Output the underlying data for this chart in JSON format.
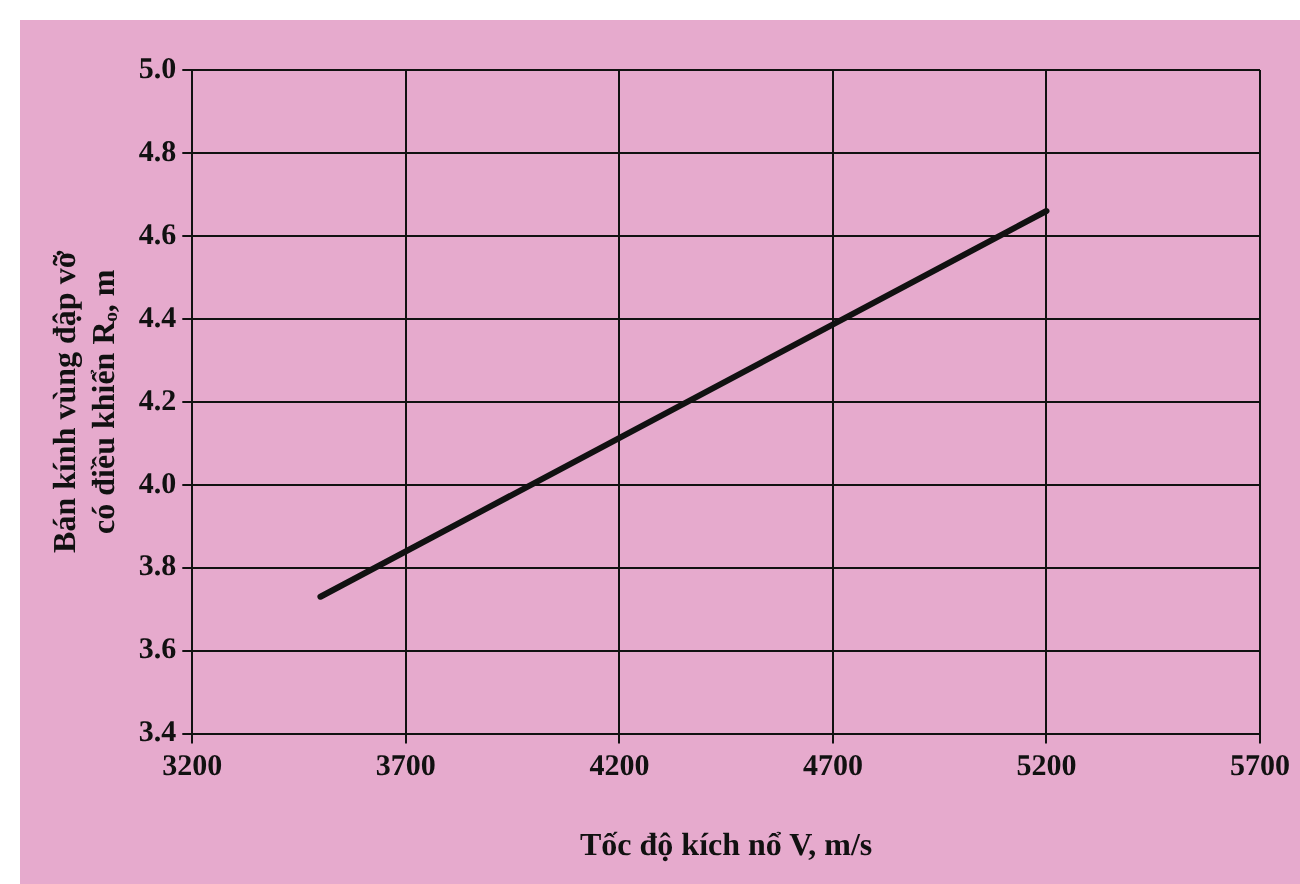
{
  "chart_data": {
    "type": "line",
    "xlabel": "Tốc độ kích nổ V, m/s",
    "ylabel": [
      "Bán kính vùng đập vỡ",
      "có điều khiển Rₒ, m"
    ],
    "x": [
      3500,
      5200
    ],
    "series": [
      {
        "color": "#111111",
        "values": [
          3.73,
          4.66
        ]
      }
    ],
    "xlim": [
      3200,
      5700
    ],
    "xticks": [
      3200,
      3700,
      4200,
      4700,
      5200,
      5700
    ],
    "ylim": [
      3.4,
      5.0
    ],
    "yticks": [
      {
        "value": 3.4,
        "label": "3.4"
      },
      {
        "value": 3.6,
        "label": "3.6"
      },
      {
        "value": 3.8,
        "label": "3.8"
      },
      {
        "value": 4.0,
        "label": "4.0"
      },
      {
        "value": 4.2,
        "label": "4.2"
      },
      {
        "value": 4.4,
        "label": "4.4"
      },
      {
        "value": 4.6,
        "label": "4.6"
      },
      {
        "value": 4.8,
        "label": "4.8"
      },
      {
        "value": 5.0,
        "label": "5.0"
      }
    ],
    "grid": true,
    "legend": false,
    "marker": "none",
    "line_style": "solid"
  }
}
